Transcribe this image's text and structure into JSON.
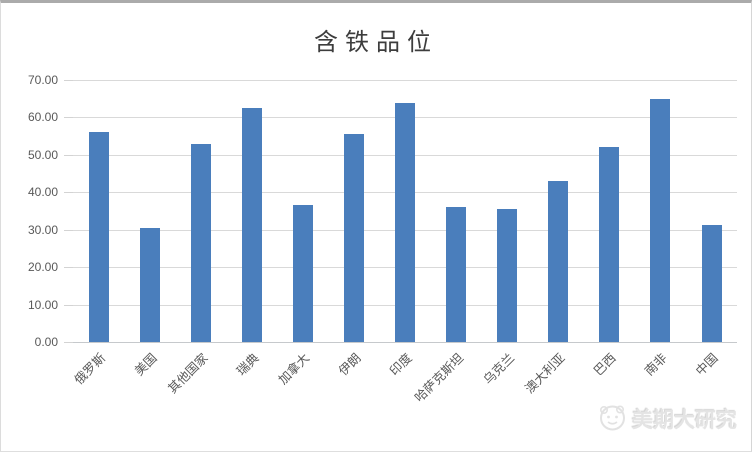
{
  "chart_data": {
    "type": "bar",
    "title": "含铁品位",
    "categories": [
      "俄罗斯",
      "美国",
      "其他国家",
      "瑞典",
      "加拿大",
      "伊朗",
      "印度",
      "哈萨克斯坦",
      "乌克兰",
      "澳大利亚",
      "巴西",
      "南非",
      "中国"
    ],
    "values": [
      56.0,
      30.5,
      52.8,
      62.5,
      36.5,
      55.5,
      64.0,
      36.0,
      35.5,
      43.0,
      52.2,
      64.9,
      31.2
    ],
    "xlabel": "",
    "ylabel": "",
    "ylim": [
      0,
      70
    ],
    "ytick_labels_top_to_bottom": [
      "70.00",
      "60.00",
      "50.00",
      "40.00",
      "30.00",
      "20.00",
      "10.00",
      "0.00"
    ],
    "grid": "horizontal",
    "legend": "none",
    "bar_color": "#4a7ebc",
    "gridline_color": "#d9d9d9",
    "axis_text_color": "#595959",
    "title_color": "#3d3d3d"
  },
  "watermark": {
    "label": "美期大研究",
    "icon": "brand-logo-icon"
  }
}
